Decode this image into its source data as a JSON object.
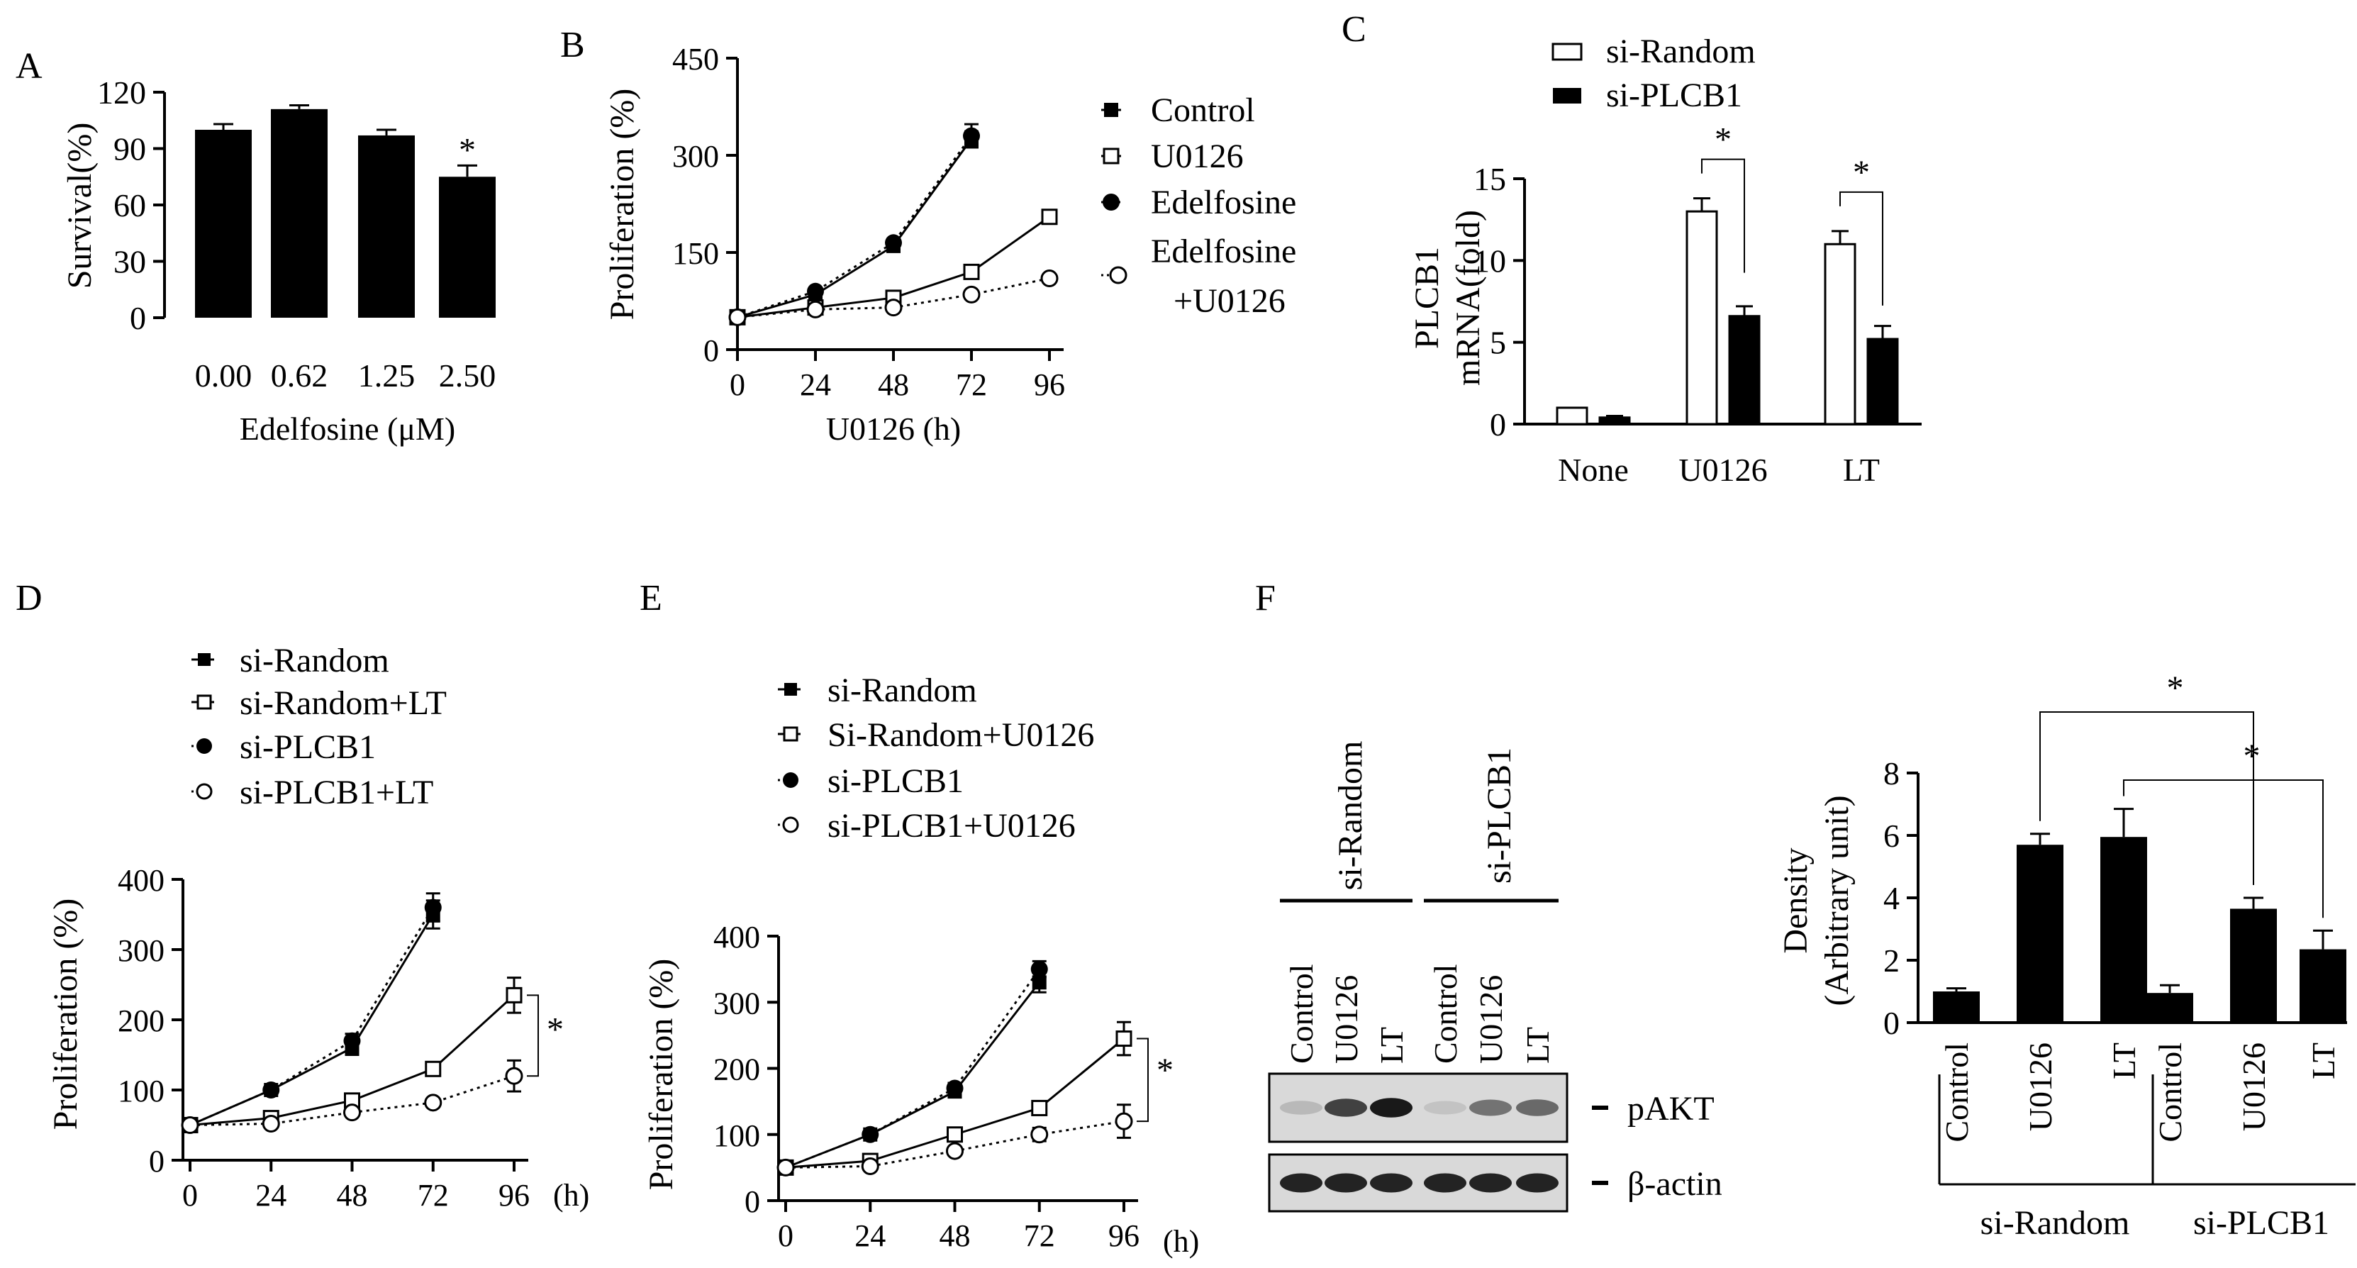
{
  "panel_labels": {
    "A": "A",
    "B": "B",
    "C": "C",
    "D": "D",
    "E": "E",
    "F": "F"
  },
  "significance_symbol": "*",
  "hour_unit": "(h)",
  "chart_data": [
    {
      "id": "A",
      "type": "bar",
      "title": "",
      "xlabel": "Edelfosine (μM)",
      "ylabel": "Survival(%)",
      "categories": [
        "0.00",
        "0.62",
        "1.25",
        "2.50"
      ],
      "values": [
        100,
        111,
        97,
        75
      ],
      "errors": [
        3,
        2,
        3,
        6
      ],
      "ylim": [
        0,
        120
      ],
      "yticks": [
        "0",
        "30",
        "60",
        "90",
        "120"
      ],
      "significant": [
        false,
        false,
        false,
        true
      ]
    },
    {
      "id": "B",
      "type": "line",
      "xlabel": "U0126 (h)",
      "ylabel": "Proliferation (%)",
      "xlim": [
        0,
        96
      ],
      "xticks": [
        "0",
        "24",
        "48",
        "72",
        "96"
      ],
      "ylim": [
        0,
        450
      ],
      "yticks": [
        "0",
        "150",
        "300",
        "450"
      ],
      "series": [
        {
          "name": "Control",
          "marker": "filled-square",
          "line": "solid",
          "x": [
            0,
            24,
            48,
            72
          ],
          "y": [
            50,
            85,
            160,
            325
          ],
          "err": [
            4,
            4,
            6,
            12
          ]
        },
        {
          "name": "U0126",
          "marker": "open-square",
          "line": "solid",
          "x": [
            0,
            24,
            48,
            72,
            96
          ],
          "y": [
            50,
            65,
            80,
            120,
            205
          ],
          "err": [
            3,
            3,
            4,
            6,
            8
          ]
        },
        {
          "name": "Edelfosine",
          "marker": "filled-circle",
          "line": "dotted",
          "x": [
            0,
            24,
            48,
            72
          ],
          "y": [
            50,
            90,
            165,
            330
          ],
          "err": [
            4,
            4,
            6,
            18
          ]
        },
        {
          "name": "Edelfosine\n+U0126",
          "marker": "open-circle",
          "line": "dotted",
          "x": [
            0,
            24,
            48,
            72,
            96
          ],
          "y": [
            50,
            62,
            65,
            85,
            110
          ],
          "err": [
            3,
            3,
            3,
            4,
            5
          ]
        }
      ],
      "legend_lines": [
        "Control",
        "U0126",
        "Edelfosine",
        "Edelfosine",
        "+U0126"
      ]
    },
    {
      "id": "C",
      "type": "bar",
      "ylabel_line1": "PLCB1",
      "ylabel_line2": "mRNA(fold)",
      "categories": [
        "None",
        "U0126",
        "LT"
      ],
      "series": [
        {
          "name": "si-Random",
          "fill": "open",
          "values": [
            1,
            13,
            11
          ],
          "errors": [
            0,
            0.8,
            0.8
          ]
        },
        {
          "name": "si-PLCB1",
          "fill": "filled",
          "values": [
            0.4,
            6.6,
            5.2
          ],
          "errors": [
            0.1,
            0.6,
            0.8
          ]
        }
      ],
      "ylim": [
        0,
        15
      ],
      "yticks": [
        "0",
        "5",
        "10",
        "15"
      ],
      "significant_groups": [
        "U0126",
        "LT"
      ]
    },
    {
      "id": "D",
      "type": "line",
      "ylabel": "Proliferation (%)",
      "xlim": [
        0,
        96
      ],
      "xticks": [
        "0",
        "24",
        "48",
        "72",
        "96"
      ],
      "ylim": [
        0,
        400
      ],
      "yticks": [
        "0",
        "100",
        "200",
        "300",
        "400"
      ],
      "series": [
        {
          "name": "si-Random",
          "marker": "filled-square",
          "line": "solid",
          "x": [
            0,
            24,
            48,
            72
          ],
          "y": [
            50,
            100,
            160,
            350
          ],
          "err": [
            4,
            5,
            10,
            20
          ]
        },
        {
          "name": "si-Random+LT",
          "marker": "open-square",
          "line": "solid",
          "x": [
            0,
            24,
            48,
            72,
            96
          ],
          "y": [
            50,
            60,
            85,
            130,
            235
          ],
          "err": [
            3,
            4,
            5,
            6,
            25
          ]
        },
        {
          "name": "si-PLCB1",
          "marker": "filled-circle",
          "line": "dotted",
          "x": [
            0,
            24,
            48,
            72
          ],
          "y": [
            50,
            100,
            170,
            360
          ],
          "err": [
            4,
            5,
            10,
            20
          ]
        },
        {
          "name": "si-PLCB1+LT",
          "marker": "open-circle",
          "line": "dotted",
          "x": [
            0,
            24,
            48,
            72,
            96
          ],
          "y": [
            50,
            52,
            68,
            82,
            120
          ],
          "err": [
            3,
            3,
            4,
            5,
            22
          ]
        }
      ],
      "significant_at": 96
    },
    {
      "id": "E",
      "type": "line",
      "ylabel": "Proliferation (%)",
      "xlim": [
        0,
        96
      ],
      "xticks": [
        "0",
        "24",
        "48",
        "72",
        "96"
      ],
      "ylim": [
        0,
        400
      ],
      "yticks": [
        "0",
        "100",
        "200",
        "300",
        "400"
      ],
      "series": [
        {
          "name": "si-Random",
          "marker": "filled-square",
          "line": "solid",
          "x": [
            0,
            24,
            48,
            72
          ],
          "y": [
            50,
            100,
            165,
            330
          ],
          "err": [
            4,
            5,
            8,
            15
          ]
        },
        {
          "name": "Si-Random+U0126",
          "marker": "open-square",
          "line": "solid",
          "x": [
            0,
            24,
            48,
            72,
            96
          ],
          "y": [
            50,
            60,
            100,
            140,
            245
          ],
          "err": [
            3,
            4,
            5,
            6,
            25
          ]
        },
        {
          "name": "si-PLCB1",
          "marker": "filled-circle",
          "line": "dotted",
          "x": [
            0,
            24,
            48,
            72
          ],
          "y": [
            50,
            100,
            170,
            350
          ],
          "err": [
            4,
            5,
            8,
            12
          ]
        },
        {
          "name": "si-PLCB1+U0126",
          "marker": "open-circle",
          "line": "dotted",
          "x": [
            0,
            24,
            48,
            72,
            96
          ],
          "y": [
            50,
            52,
            75,
            100,
            120
          ],
          "err": [
            3,
            3,
            4,
            10,
            25
          ]
        }
      ],
      "significant_at": 96
    },
    {
      "id": "F",
      "type": "bar",
      "ylabel_line1": "Density",
      "ylabel_line2": "(Arbitrary unit)",
      "categories": [
        "Control",
        "U0126",
        "LT",
        "Control",
        "U0126",
        "LT"
      ],
      "groups": [
        {
          "name": "si-Random",
          "indices": [
            0,
            1,
            2
          ]
        },
        {
          "name": "si-PLCB1",
          "indices": [
            3,
            4,
            5
          ]
        }
      ],
      "values": [
        1.0,
        5.7,
        5.95,
        0.95,
        3.65,
        2.35
      ],
      "errors": [
        0.1,
        0.35,
        0.9,
        0.25,
        0.35,
        0.6
      ],
      "ylim": [
        0,
        8
      ],
      "yticks": [
        "0",
        "2",
        "4",
        "6",
        "8"
      ],
      "comparisons": [
        [
          1,
          4
        ],
        [
          2,
          5
        ]
      ]
    }
  ],
  "western_blot": {
    "groups": [
      {
        "name": "si-Random",
        "lanes": [
          "Control",
          "U0126",
          "LT"
        ]
      },
      {
        "name": "si-PLCB1",
        "lanes": [
          "Control",
          "U0126",
          "LT"
        ]
      }
    ],
    "rows": [
      {
        "label": "pAKT",
        "intensities": [
          0.15,
          0.75,
          0.95,
          0.1,
          0.5,
          0.55
        ]
      },
      {
        "label": "β-actin",
        "intensities": [
          0.9,
          0.9,
          0.9,
          0.9,
          0.9,
          0.9
        ]
      }
    ]
  }
}
